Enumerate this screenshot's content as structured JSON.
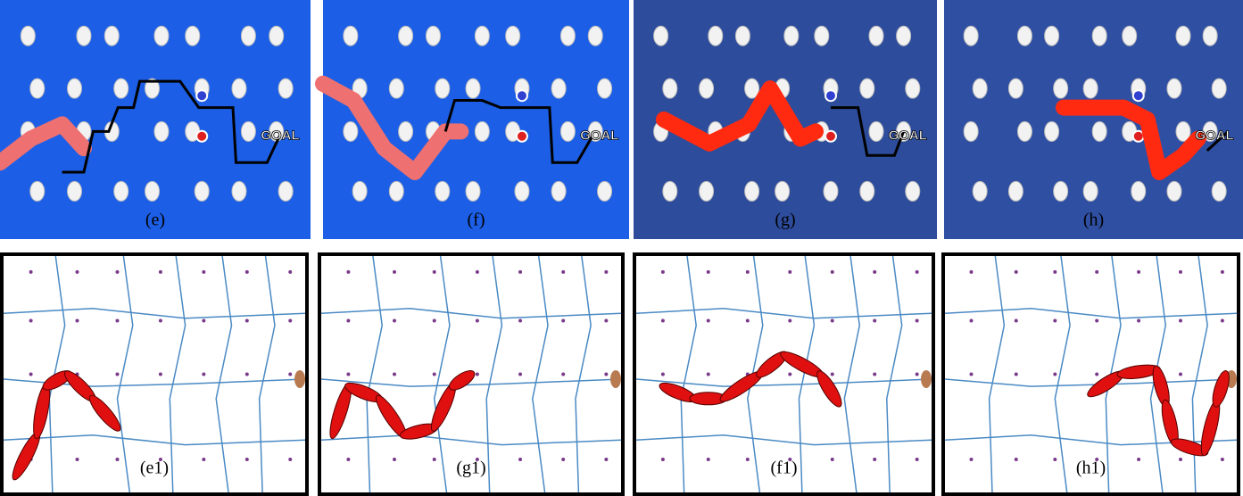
{
  "photos": [
    {
      "label": "(e)",
      "goal": "GOAL"
    },
    {
      "label": "(f)",
      "goal": "GOAL"
    },
    {
      "label": "(g)",
      "goal": "GOAL"
    },
    {
      "label": "(h)",
      "goal": "GOAL"
    }
  ],
  "diagrams": [
    {
      "label": "(e1)"
    },
    {
      "label": "(g1)"
    },
    {
      "label": "(f1)"
    },
    {
      "label": "(h1)"
    }
  ]
}
